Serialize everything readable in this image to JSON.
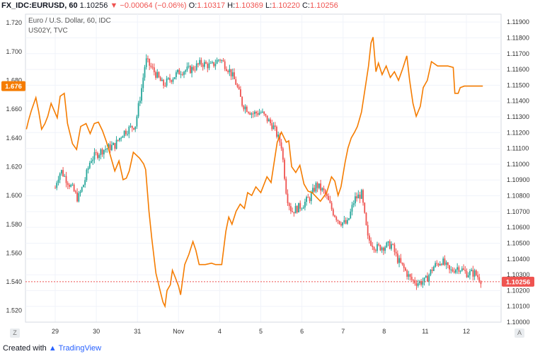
{
  "header": {
    "symbol": "FX_IDC:EURUSD, 60",
    "last": "1.10256",
    "change": "▼ −0.00064 (−0.06%)",
    "o_label": "O:",
    "o": "1.10317",
    "h_label": "H:",
    "h": "1.10369",
    "l_label": "L:",
    "l": "1.10220",
    "c_label": "C:",
    "c": "1.10256",
    "title": "Euro / U.S. Dollar, 60, IDC",
    "overlay": "US02Y, TVC"
  },
  "footer": {
    "created": "Created with",
    "brand": "TradingView"
  },
  "corners": {
    "left": "Z",
    "right": "A"
  },
  "colors": {
    "up": "#26a69a",
    "down": "#ef5350",
    "overlay": "#f57c00",
    "grid": "#f0f3fa",
    "axis_text": "#333333",
    "last_price": "#ef5350"
  },
  "chart_data": {
    "type": "candlestick",
    "symbol": "FX_IDC:EURUSD",
    "interval": "60",
    "xaxis": {
      "tick_labels": [
        "29",
        "30",
        "31",
        "Nov",
        "4",
        "5",
        "6",
        "7",
        "8",
        "11",
        "12"
      ]
    },
    "right_axis": {
      "ticks": [
        "1.10000",
        "1.10100",
        "1.10200",
        "1.10300",
        "1.10400",
        "1.10500",
        "1.10600",
        "1.10700",
        "1.10800",
        "1.10900",
        "1.11000",
        "1.11100",
        "1.11200",
        "1.11300",
        "1.11400",
        "1.11500",
        "1.11600",
        "1.11700",
        "1.11800",
        "1.11900"
      ],
      "ylim": [
        1.1,
        1.1195
      ],
      "last_price": "1.10256"
    },
    "left_axis": {
      "ticks": [
        "1.520",
        "1.540",
        "1.560",
        "1.580",
        "1.600",
        "1.620",
        "1.640",
        "1.660",
        "1.680",
        "1.700",
        "1.720"
      ],
      "ylim": [
        1.512,
        1.726
      ],
      "last_value": "1.676"
    },
    "series": [
      {
        "name": "Euro / U.S. Dollar, 60, IDC",
        "axis": "right",
        "x": [
          "29",
          "30",
          "31",
          "Nov",
          "4",
          "5",
          "6",
          "7",
          "8",
          "11",
          "12"
        ],
        "close_path": [
          [
            0.0,
            1.1085
          ],
          [
            0.05,
            1.1091
          ],
          [
            0.14,
            1.1096
          ],
          [
            0.28,
            1.109
          ],
          [
            0.43,
            1.1084
          ],
          [
            0.55,
            1.1078
          ],
          [
            0.7,
            1.1088
          ],
          [
            0.86,
            1.1103
          ],
          [
            1.15,
            1.1109
          ],
          [
            1.45,
            1.1112
          ],
          [
            1.65,
            1.112
          ],
          [
            1.95,
            1.1125
          ],
          [
            2.1,
            1.1148
          ],
          [
            2.2,
            1.1166
          ],
          [
            2.45,
            1.1157
          ],
          [
            2.62,
            1.115
          ],
          [
            2.9,
            1.1156
          ],
          [
            3.05,
            1.1159
          ],
          [
            3.3,
            1.116
          ],
          [
            3.55,
            1.1164
          ],
          [
            3.8,
            1.1162
          ],
          [
            4.0,
            1.1167
          ],
          [
            4.25,
            1.1159
          ],
          [
            4.4,
            1.1151
          ],
          [
            4.55,
            1.1138
          ],
          [
            4.8,
            1.1132
          ],
          [
            5.0,
            1.1133
          ],
          [
            5.3,
            1.1124
          ],
          [
            5.5,
            1.1112
          ],
          [
            5.63,
            1.108
          ],
          [
            5.75,
            1.107
          ],
          [
            6.0,
            1.1074
          ],
          [
            6.2,
            1.1079
          ],
          [
            6.35,
            1.1087
          ],
          [
            6.55,
            1.1082
          ],
          [
            6.75,
            1.107
          ],
          [
            6.9,
            1.1064
          ],
          [
            7.1,
            1.1062
          ],
          [
            7.28,
            1.1078
          ],
          [
            7.45,
            1.1081
          ],
          [
            7.6,
            1.1053
          ],
          [
            7.8,
            1.1047
          ],
          [
            8.0,
            1.1048
          ],
          [
            8.18,
            1.1049
          ],
          [
            8.32,
            1.104
          ],
          [
            8.5,
            1.1033
          ],
          [
            8.65,
            1.1027
          ],
          [
            8.8,
            1.1025
          ],
          [
            9.0,
            1.1026
          ],
          [
            9.2,
            1.1035
          ],
          [
            9.4,
            1.1039
          ],
          [
            9.6,
            1.1032
          ],
          [
            9.8,
            1.1035
          ],
          [
            10.0,
            1.1031
          ],
          [
            10.2,
            1.1031
          ],
          [
            10.38,
            1.1026
          ]
        ]
      },
      {
        "name": "US02Y, TVC",
        "axis": "left",
        "x": [
          "29",
          "30",
          "31",
          "Nov",
          "4",
          "5",
          "6",
          "7",
          "8",
          "11",
          "12"
        ],
        "path": [
          [
            -0.7,
            1.646
          ],
          [
            -0.65,
            1.652
          ],
          [
            -0.58,
            1.659
          ],
          [
            -0.47,
            1.668
          ],
          [
            -0.4,
            1.658
          ],
          [
            -0.33,
            1.646
          ],
          [
            -0.25,
            1.65
          ],
          [
            -0.18,
            1.655
          ],
          [
            -0.1,
            1.664
          ],
          [
            0.05,
            1.654
          ],
          [
            0.12,
            1.669
          ],
          [
            0.22,
            1.671
          ],
          [
            0.3,
            1.65
          ],
          [
            0.42,
            1.636
          ],
          [
            0.52,
            1.632
          ],
          [
            0.62,
            1.648
          ],
          [
            0.75,
            1.65
          ],
          [
            0.85,
            1.643
          ],
          [
            0.95,
            1.65
          ],
          [
            1.05,
            1.651
          ],
          [
            1.15,
            1.645
          ],
          [
            1.25,
            1.637
          ],
          [
            1.35,
            1.627
          ],
          [
            1.45,
            1.617
          ],
          [
            1.55,
            1.624
          ],
          [
            1.65,
            1.611
          ],
          [
            1.73,
            1.612
          ],
          [
            1.8,
            1.617
          ],
          [
            1.9,
            1.63
          ],
          [
            2.05,
            1.626
          ],
          [
            2.15,
            1.622
          ],
          [
            2.2,
            1.618
          ],
          [
            2.28,
            1.589
          ],
          [
            2.35,
            1.57
          ],
          [
            2.45,
            1.546
          ],
          [
            2.55,
            1.534
          ],
          [
            2.62,
            1.526
          ],
          [
            2.67,
            1.523
          ],
          [
            2.72,
            1.534
          ],
          [
            2.8,
            1.538
          ],
          [
            2.85,
            1.548
          ],
          [
            2.92,
            1.543
          ],
          [
            3.0,
            1.537
          ],
          [
            3.05,
            1.531
          ],
          [
            3.15,
            1.552
          ],
          [
            3.25,
            1.559
          ],
          [
            3.35,
            1.568
          ],
          [
            3.42,
            1.562
          ],
          [
            3.5,
            1.552
          ],
          [
            3.65,
            1.552
          ],
          [
            3.8,
            1.553
          ],
          [
            3.9,
            1.552
          ],
          [
            4.05,
            1.552
          ],
          [
            4.15,
            1.575
          ],
          [
            4.22,
            1.585
          ],
          [
            4.3,
            1.58
          ],
          [
            4.4,
            1.589
          ],
          [
            4.5,
            1.594
          ],
          [
            4.6,
            1.591
          ],
          [
            4.68,
            1.602
          ],
          [
            4.78,
            1.6
          ],
          [
            4.88,
            1.606
          ],
          [
            5.0,
            1.602
          ],
          [
            5.15,
            1.613
          ],
          [
            5.25,
            1.609
          ],
          [
            5.4,
            1.637
          ],
          [
            5.5,
            1.644
          ],
          [
            5.62,
            1.637
          ],
          [
            5.68,
            1.638
          ],
          [
            5.75,
            1.62
          ],
          [
            5.85,
            1.616
          ],
          [
            5.95,
            1.621
          ],
          [
            6.05,
            1.608
          ],
          [
            6.15,
            1.603
          ],
          [
            6.25,
            1.602
          ],
          [
            6.35,
            1.599
          ],
          [
            6.45,
            1.596
          ],
          [
            6.6,
            1.602
          ],
          [
            6.72,
            1.613
          ],
          [
            6.8,
            1.61
          ],
          [
            6.88,
            1.6
          ],
          [
            6.95,
            1.606
          ],
          [
            7.05,
            1.623
          ],
          [
            7.12,
            1.633
          ],
          [
            7.2,
            1.64
          ],
          [
            7.28,
            1.644
          ],
          [
            7.35,
            1.648
          ],
          [
            7.45,
            1.658
          ],
          [
            7.55,
            1.677
          ],
          [
            7.62,
            1.69
          ],
          [
            7.68,
            1.706
          ],
          [
            7.73,
            1.71
          ],
          [
            7.8,
            1.686
          ],
          [
            7.86,
            1.692
          ],
          [
            7.95,
            1.684
          ],
          [
            8.05,
            1.69
          ],
          [
            8.15,
            1.682
          ],
          [
            8.25,
            1.686
          ],
          [
            8.35,
            1.68
          ],
          [
            8.45,
            1.688
          ],
          [
            8.55,
            1.697
          ],
          [
            8.62,
            1.68
          ],
          [
            8.7,
            1.664
          ],
          [
            8.78,
            1.655
          ],
          [
            8.88,
            1.662
          ],
          [
            8.95,
            1.675
          ],
          [
            9.05,
            1.68
          ],
          [
            9.15,
            1.693
          ],
          [
            9.3,
            1.69
          ],
          [
            9.45,
            1.69
          ],
          [
            9.55,
            1.69
          ],
          [
            9.68,
            1.689
          ],
          [
            9.72,
            1.671
          ],
          [
            9.8,
            1.671
          ],
          [
            9.85,
            1.675
          ],
          [
            9.95,
            1.676
          ],
          [
            10.1,
            1.676
          ],
          [
            10.25,
            1.676
          ],
          [
            10.4,
            1.676
          ]
        ]
      }
    ],
    "grid": true,
    "legend": "top-left"
  }
}
